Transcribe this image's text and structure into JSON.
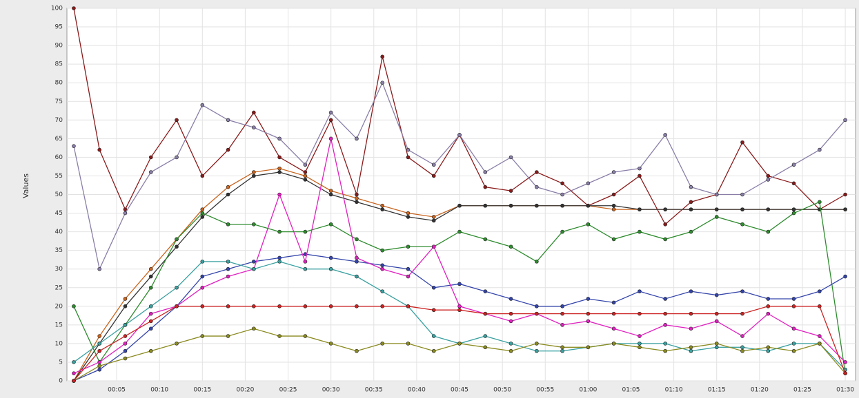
{
  "chart_data": {
    "type": "line",
    "y_label": "Values",
    "x": [
      0,
      3,
      6,
      9,
      12,
      15,
      18,
      21,
      24,
      27,
      30,
      33,
      36,
      39,
      42,
      45,
      48,
      51,
      54,
      57,
      60,
      63,
      66,
      69,
      72,
      75,
      78,
      81,
      84,
      87,
      90
    ],
    "xlim": [
      -0.8,
      91.2
    ],
    "xticks": [
      {
        "value": 5,
        "label": "00:05"
      },
      {
        "value": 10,
        "label": "00:10"
      },
      {
        "value": 15,
        "label": "00:15"
      },
      {
        "value": 20,
        "label": "00:20"
      },
      {
        "value": 25,
        "label": "00:25"
      },
      {
        "value": 30,
        "label": "00:30"
      },
      {
        "value": 35,
        "label": "00:35"
      },
      {
        "value": 40,
        "label": "00:40"
      },
      {
        "value": 45,
        "label": "00:45"
      },
      {
        "value": 50,
        "label": "00:50"
      },
      {
        "value": 55,
        "label": "00:55"
      },
      {
        "value": 60,
        "label": "01:00"
      },
      {
        "value": 65,
        "label": "01:05"
      },
      {
        "value": 70,
        "label": "01:10"
      },
      {
        "value": 75,
        "label": "01:15"
      },
      {
        "value": 80,
        "label": "01:20"
      },
      {
        "value": 85,
        "label": "01:25"
      },
      {
        "value": 90,
        "label": "01:30"
      }
    ],
    "ylim": [
      0,
      100
    ],
    "yticks": [
      0,
      5,
      10,
      15,
      20,
      25,
      30,
      35,
      40,
      45,
      50,
      55,
      60,
      65,
      70,
      75,
      80,
      85,
      90,
      95,
      100
    ],
    "grid": true,
    "series": [
      {
        "color": "#8b1a1a",
        "values": [
          100,
          62,
          46,
          60,
          70,
          55,
          62,
          72,
          60,
          56,
          70,
          50,
          87,
          60,
          55,
          66,
          52,
          51,
          56,
          53,
          47,
          50,
          55,
          42,
          48,
          50,
          64,
          55,
          53,
          46,
          50
        ]
      },
      {
        "color": "#8a7ea8",
        "values": [
          63,
          30,
          45,
          56,
          60,
          74,
          70,
          68,
          65,
          58,
          72,
          65,
          80,
          62,
          58,
          66,
          56,
          60,
          52,
          50,
          53,
          56,
          57,
          66,
          52,
          50,
          50,
          54,
          58,
          62,
          70
        ]
      },
      {
        "color": "#c8641e",
        "values": [
          0,
          12,
          22,
          30,
          38,
          46,
          52,
          56,
          57,
          55,
          51,
          49,
          47,
          45,
          44,
          47,
          47,
          47,
          47,
          47,
          47,
          46,
          46,
          46,
          46,
          46,
          46,
          46,
          46,
          46,
          46
        ]
      },
      {
        "color": "#333333",
        "values": [
          0,
          10,
          20,
          28,
          36,
          44,
          50,
          55,
          56,
          54,
          50,
          48,
          46,
          44,
          43,
          47,
          47,
          47,
          47,
          47,
          47,
          47,
          46,
          46,
          46,
          46,
          46,
          46,
          46,
          46,
          46
        ]
      },
      {
        "color": "#2e8b2e",
        "values": [
          20,
          5,
          15,
          25,
          38,
          45,
          42,
          42,
          40,
          40,
          42,
          38,
          35,
          36,
          36,
          40,
          38,
          36,
          32,
          40,
          42,
          38,
          40,
          38,
          40,
          44,
          42,
          40,
          45,
          48,
          2
        ]
      },
      {
        "color": "#3344aa",
        "values": [
          0,
          3,
          8,
          14,
          20,
          28,
          30,
          32,
          33,
          34,
          33,
          32,
          31,
          30,
          25,
          26,
          24,
          22,
          20,
          20,
          22,
          21,
          24,
          22,
          24,
          23,
          24,
          22,
          22,
          24,
          28
        ]
      },
      {
        "color": "#e020c0",
        "values": [
          2,
          5,
          10,
          18,
          20,
          25,
          28,
          30,
          50,
          32,
          65,
          33,
          30,
          28,
          36,
          20,
          18,
          16,
          18,
          15,
          16,
          14,
          12,
          15,
          14,
          16,
          12,
          18,
          14,
          12,
          5
        ]
      },
      {
        "color": "#3aa0a0",
        "values": [
          5,
          10,
          15,
          20,
          25,
          32,
          32,
          30,
          32,
          30,
          30,
          28,
          24,
          20,
          12,
          10,
          12,
          10,
          8,
          8,
          9,
          10,
          10,
          10,
          8,
          9,
          9,
          8,
          10,
          10,
          3
        ]
      },
      {
        "color": "#8a8a20",
        "values": [
          0,
          4,
          6,
          8,
          10,
          12,
          12,
          14,
          12,
          12,
          10,
          8,
          10,
          10,
          8,
          10,
          9,
          8,
          10,
          9,
          9,
          10,
          9,
          8,
          9,
          10,
          8,
          9,
          8,
          10,
          2
        ]
      },
      {
        "color": "#cc2222",
        "values": [
          0,
          8,
          12,
          16,
          20,
          20,
          20,
          20,
          20,
          20,
          20,
          20,
          20,
          20,
          19,
          19,
          18,
          18,
          18,
          18,
          18,
          18,
          18,
          18,
          18,
          18,
          18,
          20,
          20,
          20,
          2
        ]
      }
    ]
  }
}
